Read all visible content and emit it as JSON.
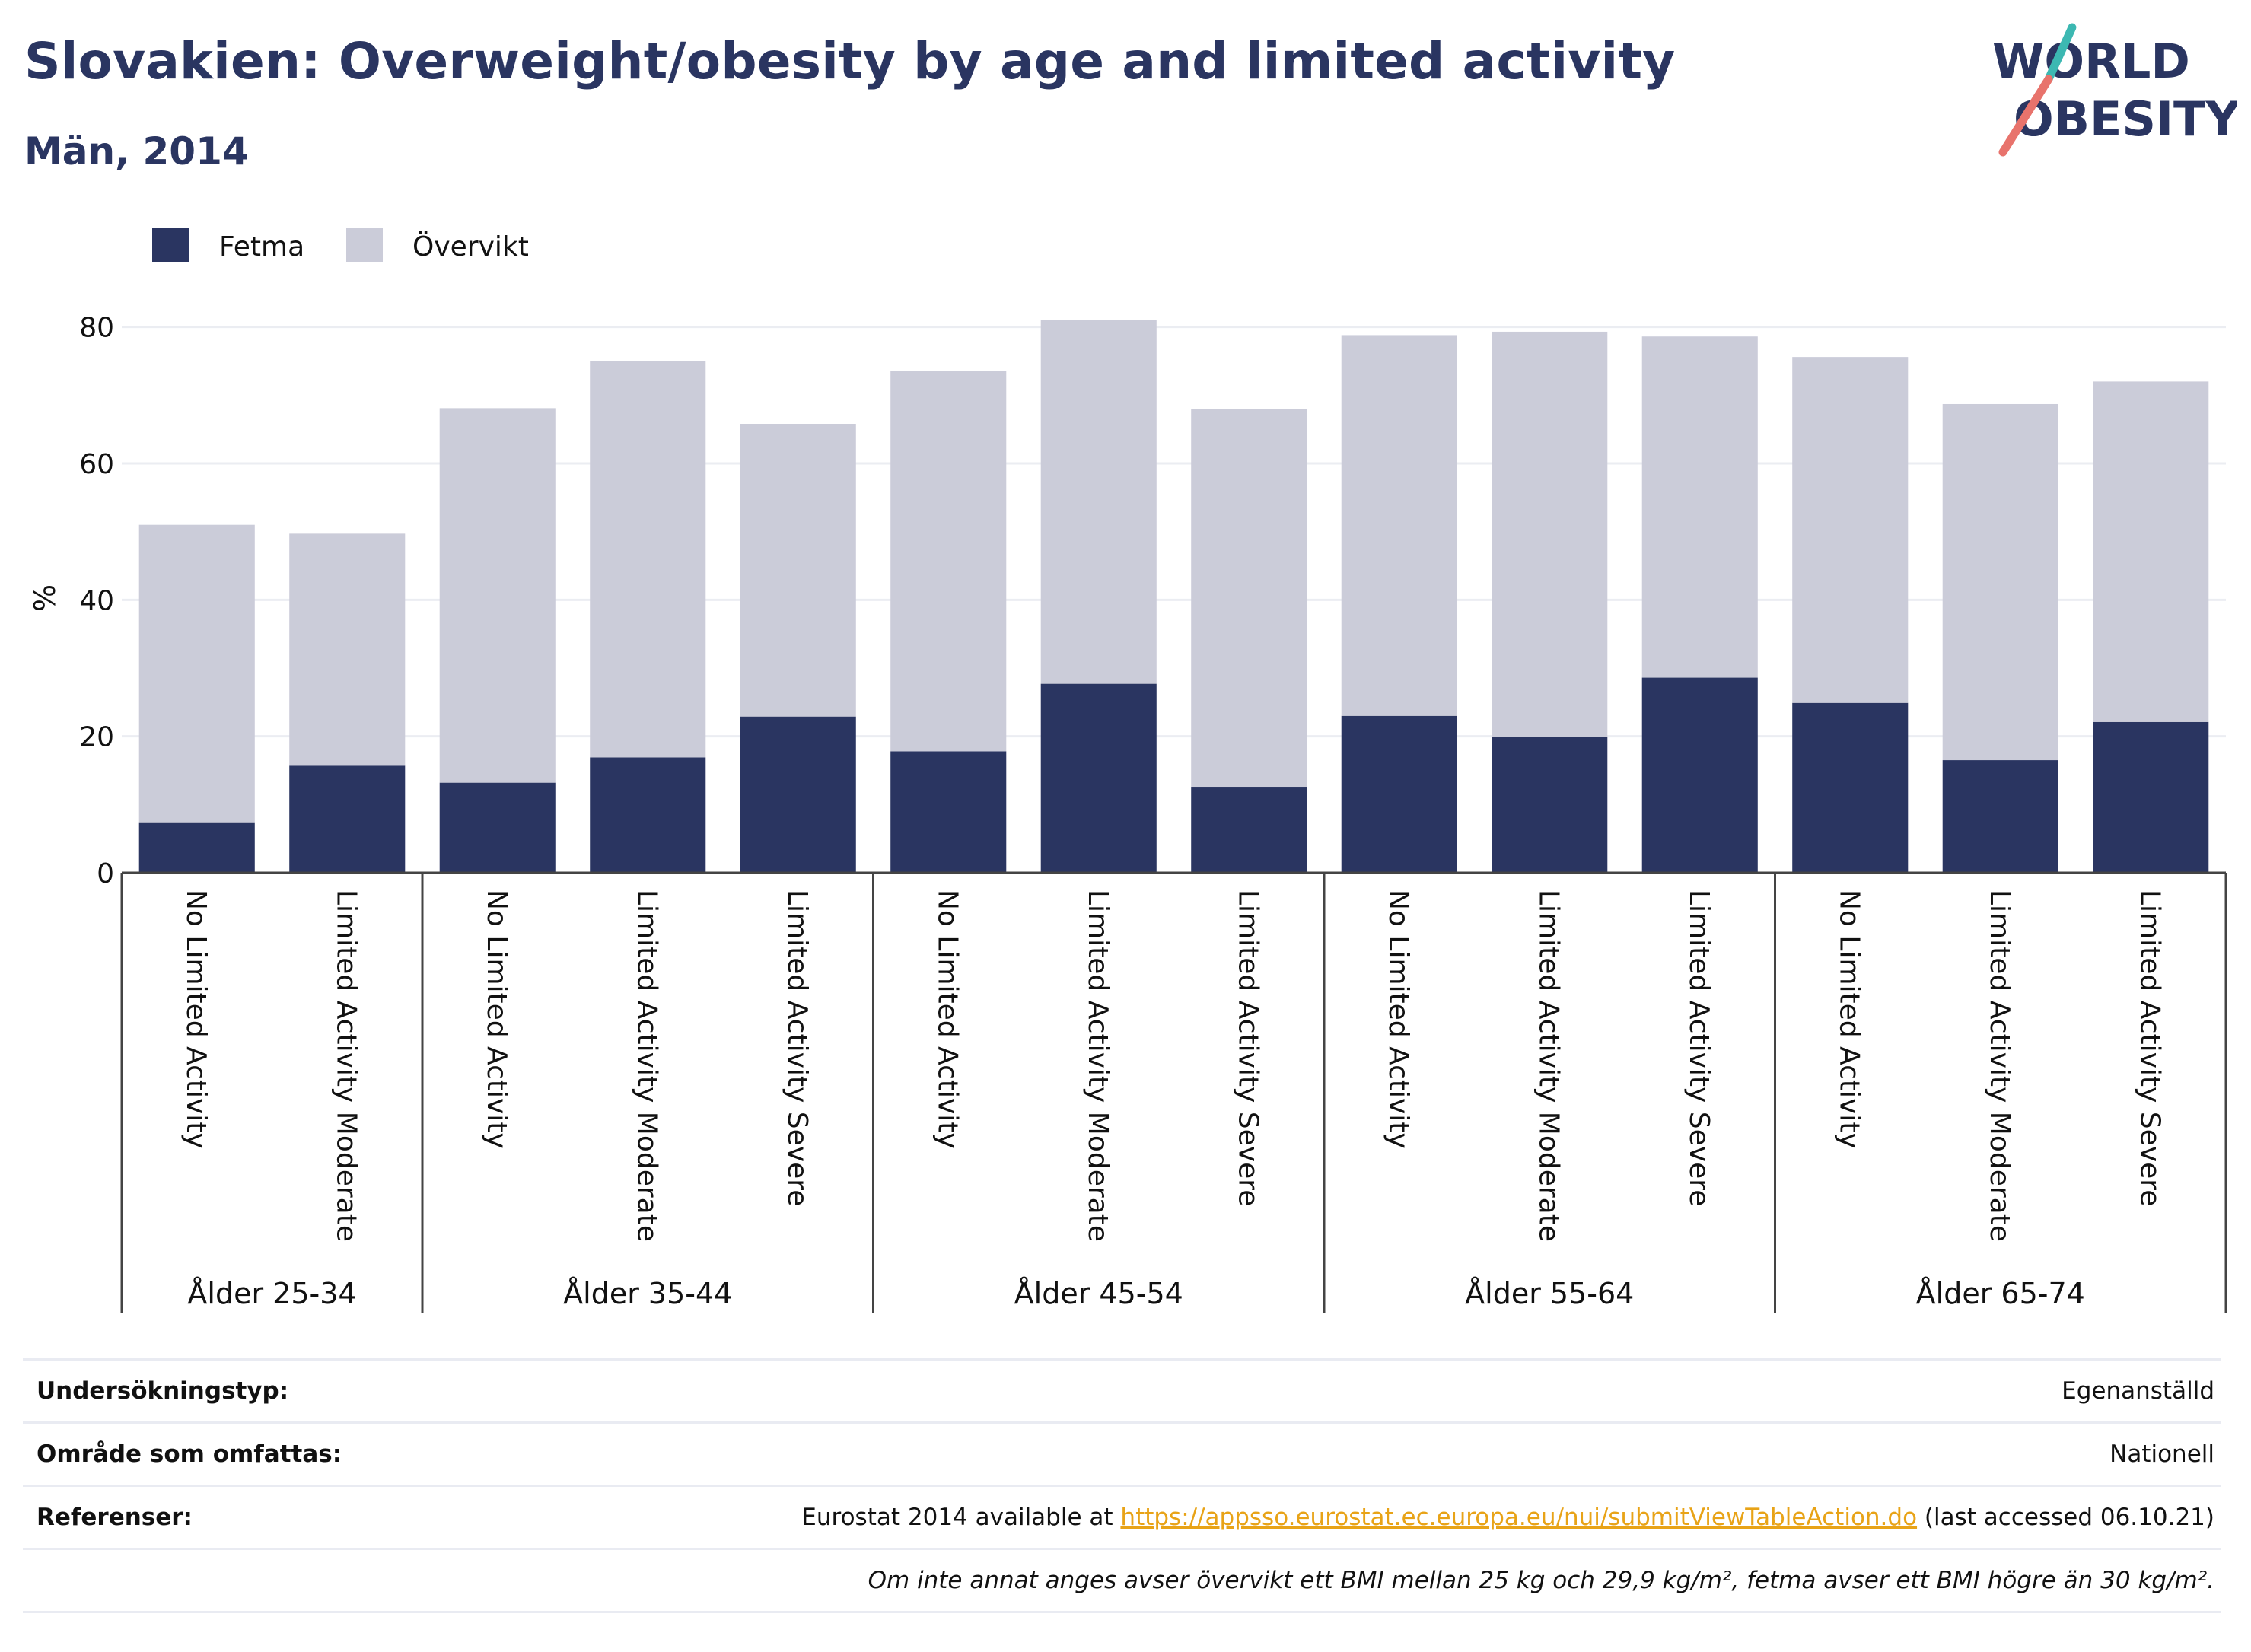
{
  "header": {
    "title": "Slovakien: Overweight/obesity by age and limited activity",
    "subtitle": "Män, 2014",
    "logo_line1": "WORLD",
    "logo_line2": "OBESITY"
  },
  "colors": {
    "fetma": "#2a3561",
    "overvikt": "#cbccd9",
    "title": "#2a3561",
    "link": "#e8a317",
    "logo_teal": "#3cb8b2",
    "logo_coral": "#e8736c"
  },
  "chart_data": {
    "type": "bar",
    "stacked": true,
    "ylabel": "%",
    "ylim": [
      0,
      90
    ],
    "yticks": [
      0,
      20,
      40,
      60,
      80
    ],
    "grid": true,
    "legend_position": "top-left",
    "groups": [
      {
        "label": "Ålder 25-34",
        "categories": [
          "No Limited Activity",
          "Limited Activity Moderate"
        ]
      },
      {
        "label": "Ålder 35-44",
        "categories": [
          "No Limited Activity",
          "Limited Activity Moderate",
          "Limited Activity Severe"
        ]
      },
      {
        "label": "Ålder 45-54",
        "categories": [
          "No Limited Activity",
          "Limited Activity Moderate",
          "Limited Activity Severe"
        ]
      },
      {
        "label": "Ålder 55-64",
        "categories": [
          "No Limited Activity",
          "Limited Activity Moderate",
          "Limited Activity Severe"
        ]
      },
      {
        "label": "Ålder 65-74",
        "categories": [
          "No Limited Activity",
          "Limited Activity Moderate",
          "Limited Activity Severe"
        ]
      }
    ],
    "categories": [
      "No Limited Activity",
      "Limited Activity Moderate",
      "No Limited Activity",
      "Limited Activity Moderate",
      "Limited Activity Severe",
      "No Limited Activity",
      "Limited Activity Moderate",
      "Limited Activity Severe",
      "No Limited Activity",
      "Limited Activity Moderate",
      "Limited Activity Severe",
      "No Limited Activity",
      "Limited Activity Moderate",
      "Limited Activity Severe"
    ],
    "series": [
      {
        "name": "Fetma",
        "values": [
          7.4,
          15.8,
          13.2,
          16.9,
          22.9,
          17.8,
          27.7,
          12.6,
          23.0,
          19.9,
          28.6,
          24.9,
          16.5,
          22.1
        ]
      },
      {
        "name": "Övervikt",
        "values": [
          43.6,
          33.9,
          54.9,
          58.1,
          42.9,
          55.7,
          53.3,
          55.4,
          55.8,
          59.4,
          50.0,
          50.7,
          52.2,
          49.9
        ]
      }
    ]
  },
  "info": {
    "survey_label": "Undersökningstyp:",
    "survey_value": "Egenanställd",
    "area_label": "Område som omfattas:",
    "area_value": "Nationell",
    "refs_label": "Referenser:",
    "refs_prefix": "Eurostat 2014 available at",
    "refs_link": "https://appsso.eurostat.ec.europa.eu/nui/submitViewTableAction.do",
    "refs_suffix": "(last accessed 06.10.21)",
    "note": "Om inte annat anges avser övervikt ett BMI mellan 25 kg och 29,9 kg/m², fetma avser ett BMI högre än 30 kg/m²."
  }
}
